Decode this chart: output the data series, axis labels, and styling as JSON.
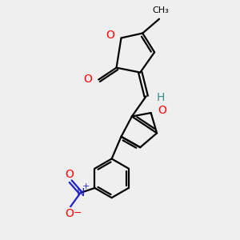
{
  "background_color": "#efefef",
  "bond_color": "#000000",
  "oxygen_color": "#ff0000",
  "nitrogen_color": "#2222cc",
  "h_color": "#3a8a8a",
  "line_width": 1.6,
  "figsize": [
    3.0,
    3.0
  ],
  "dpi": 100,
  "xlim": [
    0,
    10
  ],
  "ylim": [
    0,
    10
  ]
}
